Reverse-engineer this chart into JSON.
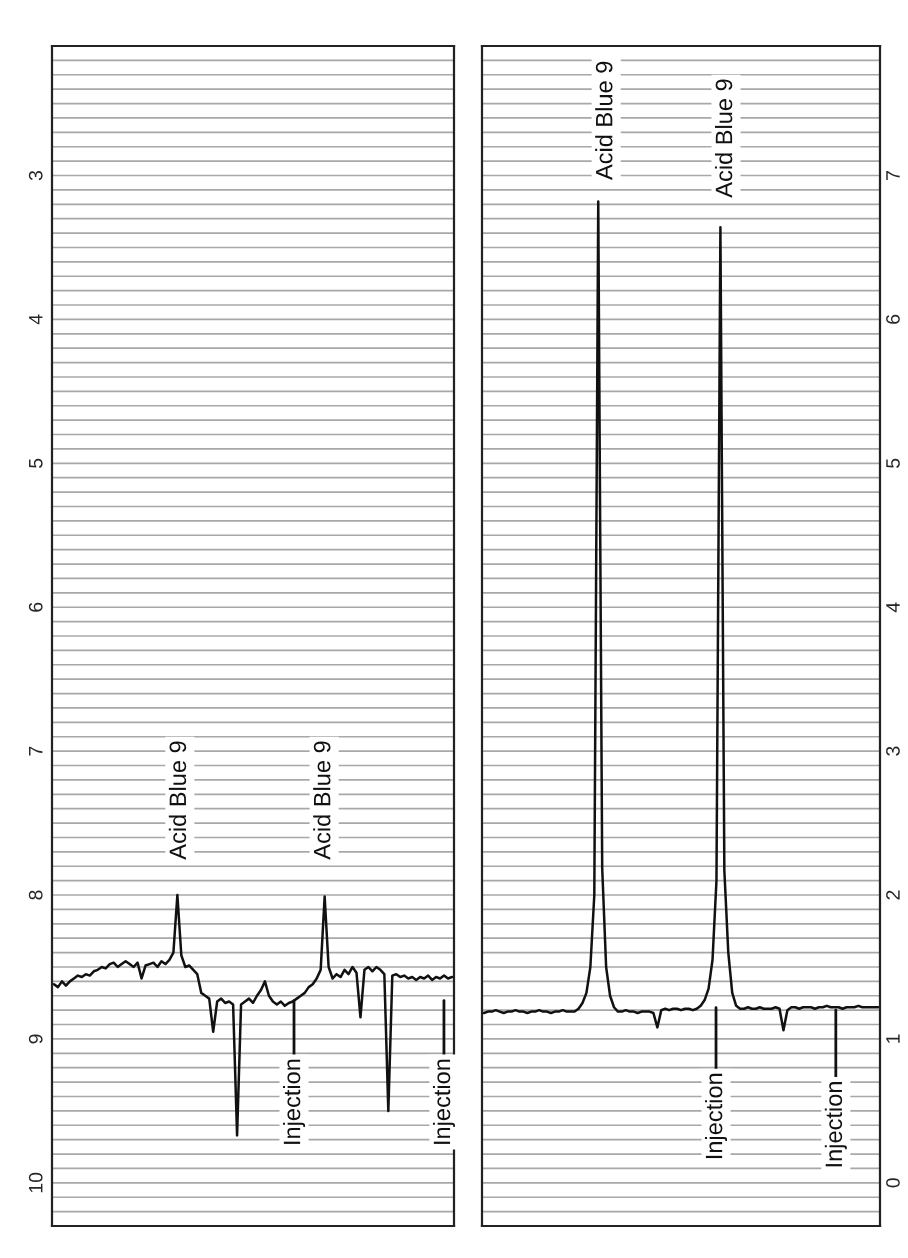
{
  "chart_data": [
    {
      "type": "line",
      "categories": [
        null,
        null,
        null,
        null,
        null,
        null,
        null,
        null,
        null,
        null,
        null,
        null,
        null,
        null,
        null,
        null,
        null,
        null,
        null,
        null,
        null,
        null,
        null,
        null,
        null,
        null,
        null,
        null,
        null,
        null,
        null,
        null,
        null,
        null,
        null,
        null,
        null,
        null,
        null,
        null,
        null,
        null,
        null,
        null,
        null,
        null,
        null,
        null,
        null,
        null,
        null,
        null,
        null,
        null,
        null,
        null,
        null,
        null,
        null,
        null,
        null,
        null,
        null,
        null,
        null,
        null,
        null,
        null,
        null,
        null,
        null,
        null,
        null,
        null,
        null,
        null,
        null,
        null,
        null,
        null,
        null,
        null,
        null,
        null,
        null,
        null,
        null,
        null,
        null,
        null,
        null,
        null,
        null,
        null,
        null,
        null,
        null,
        null,
        null,
        null,
        null
      ],
      "series": [
        {
          "color": "#111111",
          "values": [
            8.62,
            8.64,
            8.6,
            8.63,
            8.6,
            8.58,
            8.56,
            8.57,
            8.55,
            8.56,
            8.53,
            8.52,
            8.5,
            8.51,
            8.48,
            8.47,
            8.5,
            8.48,
            8.46,
            8.48,
            8.5,
            8.47,
            8.58,
            8.49,
            8.48,
            8.47,
            8.5,
            8.46,
            8.48,
            8.45,
            8.4,
            8.0,
            8.42,
            8.5,
            8.49,
            8.52,
            8.55,
            8.68,
            8.7,
            8.72,
            8.95,
            8.74,
            8.72,
            8.75,
            8.74,
            8.76,
            9.67,
            8.76,
            8.74,
            8.72,
            8.75,
            8.7,
            8.66,
            8.6,
            8.7,
            8.74,
            8.76,
            8.74,
            8.77,
            8.75,
            8.74,
            8.72,
            8.7,
            8.68,
            8.64,
            8.62,
            8.58,
            8.52,
            8.01,
            8.5,
            8.58,
            8.55,
            8.57,
            8.52,
            8.55,
            8.5,
            8.54,
            8.85,
            8.52,
            8.5,
            8.53,
            8.5,
            8.52,
            8.55,
            9.5,
            8.56,
            8.55,
            8.57,
            8.56,
            8.58,
            8.57,
            8.59,
            8.57,
            8.58,
            8.56,
            8.59,
            8.57,
            8.58,
            8.56,
            8.58,
            8.57
          ]
        }
      ],
      "ylim": [
        10.3,
        2.1
      ],
      "yticks": [
        {
          "value": 2.2,
          "label": null
        },
        {
          "value": 2.3,
          "label": null
        },
        {
          "value": 2.4,
          "label": null
        },
        {
          "value": 2.5,
          "label": null
        },
        {
          "value": 2.6,
          "label": null
        },
        {
          "value": 2.7,
          "label": null
        },
        {
          "value": 2.8,
          "label": null
        },
        {
          "value": 2.9,
          "label": null
        },
        3,
        {
          "value": 3.1,
          "label": null
        },
        {
          "value": 3.2,
          "label": null
        },
        {
          "value": 3.3,
          "label": null
        },
        {
          "value": 3.4,
          "label": null
        },
        {
          "value": 3.5,
          "label": null
        },
        {
          "value": 3.6,
          "label": null
        },
        {
          "value": 3.7,
          "label": null
        },
        {
          "value": 3.8,
          "label": null
        },
        {
          "value": 3.9,
          "label": null
        },
        4,
        {
          "value": 4.1,
          "label": null
        },
        {
          "value": 4.2,
          "label": null
        },
        {
          "value": 4.3,
          "label": null
        },
        {
          "value": 4.4,
          "label": null
        },
        {
          "value": 4.5,
          "label": null
        },
        {
          "value": 4.6,
          "label": null
        },
        {
          "value": 4.7,
          "label": null
        },
        {
          "value": 4.8,
          "label": null
        },
        {
          "value": 4.9,
          "label": null
        },
        5,
        {
          "value": 5.1,
          "label": null
        },
        {
          "value": 5.2,
          "label": null
        },
        {
          "value": 5.3,
          "label": null
        },
        {
          "value": 5.4,
          "label": null
        },
        {
          "value": 5.5,
          "label": null
        },
        {
          "value": 5.6,
          "label": null
        },
        {
          "value": 5.7,
          "label": null
        },
        {
          "value": 5.8,
          "label": null
        },
        {
          "value": 5.9,
          "label": null
        },
        6,
        {
          "value": 6.1,
          "label": null
        },
        {
          "value": 6.2,
          "label": null
        },
        {
          "value": 6.3,
          "label": null
        },
        {
          "value": 6.4,
          "label": null
        },
        {
          "value": 6.5,
          "label": null
        },
        {
          "value": 6.6,
          "label": null
        },
        {
          "value": 6.7,
          "label": null
        },
        {
          "value": 6.8,
          "label": null
        },
        {
          "value": 6.9,
          "label": null
        },
        7,
        {
          "value": 7.1,
          "label": null
        },
        {
          "value": 7.2,
          "label": null
        },
        {
          "value": 7.3,
          "label": null
        },
        {
          "value": 7.4,
          "label": null
        },
        {
          "value": 7.5,
          "label": null
        },
        {
          "value": 7.6,
          "label": null
        },
        {
          "value": 7.7,
          "label": null
        },
        {
          "value": 7.8,
          "label": null
        },
        {
          "value": 7.9,
          "label": null
        },
        8,
        {
          "value": 8.1,
          "label": null
        },
        {
          "value": 8.2,
          "label": null
        },
        {
          "value": 8.3,
          "label": null
        },
        {
          "value": 8.4,
          "label": null
        },
        {
          "value": 8.5,
          "label": null
        },
        {
          "value": 8.6,
          "label": null
        },
        {
          "value": 8.7,
          "label": null
        },
        {
          "value": 8.8,
          "label": null
        },
        {
          "value": 8.9,
          "label": null
        },
        9,
        {
          "value": 9.1,
          "label": null
        },
        {
          "value": 9.2,
          "label": null
        },
        {
          "value": 9.3,
          "label": null
        },
        {
          "value": 9.4,
          "label": null
        },
        {
          "value": 9.5,
          "label": null
        },
        {
          "value": 9.6,
          "label": null
        },
        {
          "value": 9.7,
          "label": null
        },
        {
          "value": 9.8,
          "label": null
        },
        {
          "value": 9.9,
          "label": null
        },
        10,
        {
          "value": 10.1,
          "label": null
        },
        {
          "value": 10.2,
          "label": null
        }
      ],
      "grid": "y",
      "tick_labels": "y",
      "annotations": [
        "Acid Blue 9",
        "Acid Blue 9",
        "Injection",
        "Injection"
      ]
    },
    {
      "type": "line",
      "categories": [
        null,
        null,
        null,
        null,
        null,
        null,
        null,
        null,
        null,
        null,
        null,
        null,
        null,
        null,
        null,
        null,
        null,
        null,
        null,
        null,
        null,
        null,
        null,
        null,
        null,
        null,
        null,
        null,
        null,
        null,
        null,
        null,
        null,
        null,
        null,
        null,
        null,
        null,
        null,
        null,
        null,
        null,
        null,
        null,
        null,
        null,
        null,
        null,
        null,
        null,
        null,
        null,
        null,
        null,
        null,
        null,
        null,
        null,
        null,
        null,
        null,
        null,
        null,
        null,
        null,
        null,
        null,
        null,
        null,
        null,
        null,
        null,
        null,
        null,
        null,
        null,
        null,
        null,
        null,
        null,
        null,
        null,
        null,
        null,
        null,
        null,
        null,
        null,
        null,
        null,
        null,
        null,
        null,
        null,
        null,
        null,
        null,
        null,
        null,
        null,
        null
      ],
      "series": [
        {
          "color": "#111111",
          "values": [
            1.18,
            1.19,
            1.19,
            1.2,
            1.19,
            1.18,
            1.19,
            1.19,
            1.2,
            1.19,
            1.19,
            1.18,
            1.19,
            1.19,
            1.2,
            1.19,
            1.19,
            1.18,
            1.19,
            1.19,
            1.2,
            1.19,
            1.19,
            1.19,
            1.21,
            1.25,
            1.32,
            1.5,
            2.0,
            6.82,
            2.19,
            1.5,
            1.3,
            1.22,
            1.19,
            1.19,
            1.2,
            1.19,
            1.19,
            1.18,
            1.19,
            1.19,
            1.19,
            1.18,
            1.08,
            1.2,
            1.21,
            1.2,
            1.21,
            1.21,
            1.2,
            1.21,
            1.21,
            1.2,
            1.21,
            1.23,
            1.27,
            1.35,
            1.55,
            2.1,
            6.64,
            2.17,
            1.6,
            1.32,
            1.23,
            1.21,
            1.21,
            1.22,
            1.21,
            1.21,
            1.22,
            1.21,
            1.21,
            1.21,
            1.22,
            1.21,
            1.06,
            1.2,
            1.22,
            1.22,
            1.21,
            1.22,
            1.22,
            1.22,
            1.21,
            1.22,
            1.22,
            1.23,
            1.22,
            1.22,
            1.22,
            1.21,
            1.22,
            1.22,
            1.22,
            1.23,
            1.22,
            1.22,
            1.22,
            1.22,
            1.22
          ]
        }
      ],
      "ylim": [
        -0.3,
        7.9
      ],
      "yticks": [
        {
          "value": -0.2,
          "label": null
        },
        {
          "value": -0.1,
          "label": null
        },
        0,
        {
          "value": 0.1,
          "label": null
        },
        {
          "value": 0.2,
          "label": null
        },
        {
          "value": 0.3,
          "label": null
        },
        {
          "value": 0.4,
          "label": null
        },
        {
          "value": 0.5,
          "label": null
        },
        {
          "value": 0.6,
          "label": null
        },
        {
          "value": 0.7,
          "label": null
        },
        {
          "value": 0.8,
          "label": null
        },
        {
          "value": 0.9,
          "label": null
        },
        1,
        {
          "value": 1.1,
          "label": null
        },
        {
          "value": 1.2,
          "label": null
        },
        {
          "value": 1.3,
          "label": null
        },
        {
          "value": 1.4,
          "label": null
        },
        {
          "value": 1.5,
          "label": null
        },
        {
          "value": 1.6,
          "label": null
        },
        {
          "value": 1.7,
          "label": null
        },
        {
          "value": 1.8,
          "label": null
        },
        {
          "value": 1.9,
          "label": null
        },
        2,
        {
          "value": 2.1,
          "label": null
        },
        {
          "value": 2.2,
          "label": null
        },
        {
          "value": 2.3,
          "label": null
        },
        {
          "value": 2.4,
          "label": null
        },
        {
          "value": 2.5,
          "label": null
        },
        {
          "value": 2.6,
          "label": null
        },
        {
          "value": 2.7,
          "label": null
        },
        {
          "value": 2.8,
          "label": null
        },
        {
          "value": 2.9,
          "label": null
        },
        3,
        {
          "value": 3.1,
          "label": null
        },
        {
          "value": 3.2,
          "label": null
        },
        {
          "value": 3.3,
          "label": null
        },
        {
          "value": 3.4,
          "label": null
        },
        {
          "value": 3.5,
          "label": null
        },
        {
          "value": 3.6,
          "label": null
        },
        {
          "value": 3.7,
          "label": null
        },
        {
          "value": 3.8,
          "label": null
        },
        {
          "value": 3.9,
          "label": null
        },
        4,
        {
          "value": 4.1,
          "label": null
        },
        {
          "value": 4.2,
          "label": null
        },
        {
          "value": 4.3,
          "label": null
        },
        {
          "value": 4.4,
          "label": null
        },
        {
          "value": 4.5,
          "label": null
        },
        {
          "value": 4.6,
          "label": null
        },
        {
          "value": 4.7,
          "label": null
        },
        {
          "value": 4.8,
          "label": null
        },
        {
          "value": 4.9,
          "label": null
        },
        5,
        {
          "value": 5.1,
          "label": null
        },
        {
          "value": 5.2,
          "label": null
        },
        {
          "value": 5.3,
          "label": null
        },
        {
          "value": 5.4,
          "label": null
        },
        {
          "value": 5.5,
          "label": null
        },
        {
          "value": 5.6,
          "label": null
        },
        {
          "value": 5.7,
          "label": null
        },
        {
          "value": 5.8,
          "label": null
        },
        {
          "value": 5.9,
          "label": null
        },
        6,
        {
          "value": 6.1,
          "label": null
        },
        {
          "value": 6.2,
          "label": null
        },
        {
          "value": 6.3,
          "label": null
        },
        {
          "value": 6.4,
          "label": null
        },
        {
          "value": 6.5,
          "label": null
        },
        {
          "value": 6.6,
          "label": null
        },
        {
          "value": 6.7,
          "label": null
        },
        {
          "value": 6.8,
          "label": null
        },
        {
          "value": 6.9,
          "label": null
        },
        7,
        {
          "value": 7.1,
          "label": null
        },
        {
          "value": 7.2,
          "label": null
        },
        {
          "value": 7.3,
          "label": null
        },
        {
          "value": 7.4,
          "label": null
        },
        {
          "value": 7.5,
          "label": null
        },
        {
          "value": 7.6,
          "label": null
        },
        {
          "value": 7.7,
          "label": null
        },
        {
          "value": 7.8,
          "label": null
        }
      ],
      "grid": "y",
      "tick_labels": "y",
      "annotations": [
        "Acid Blue 9",
        "Acid Blue 9",
        "Injection",
        "Injection"
      ]
    }
  ]
}
